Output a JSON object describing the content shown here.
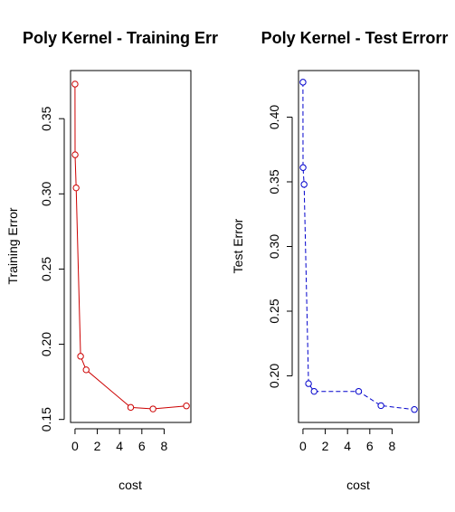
{
  "chart_data": [
    {
      "type": "line",
      "title": "Poly Kernel - Training Err",
      "xlabel": "cost",
      "ylabel": "Training Error",
      "xlim": [
        -0.4,
        10.4
      ],
      "ylim": [
        0.148,
        0.382
      ],
      "x_ticks": [
        0,
        2,
        4,
        6,
        8
      ],
      "y_ticks": [
        0.15,
        0.2,
        0.25,
        0.3,
        0.35
      ],
      "y_tick_labels": [
        "0.15",
        "0.20",
        "0.25",
        "0.30",
        "0.35"
      ],
      "x_tick_labels": [
        "0",
        "2",
        "4",
        "6",
        "8"
      ],
      "grid": false,
      "color": "#cc0000",
      "line_style": "solid",
      "marker": "open-circle",
      "series": [
        {
          "x": [
            0.001,
            0.01,
            0.1,
            0.5,
            1,
            5,
            7,
            10
          ],
          "y": [
            0.373,
            0.326,
            0.304,
            0.192,
            0.183,
            0.158,
            0.157,
            0.159
          ]
        }
      ]
    },
    {
      "type": "line",
      "title": "Poly Kernel - Test Errorr",
      "xlabel": "cost",
      "ylabel": "Test Error",
      "xlim": [
        -0.4,
        10.4
      ],
      "ylim": [
        0.164,
        0.436
      ],
      "x_ticks": [
        0,
        2,
        4,
        6,
        8
      ],
      "y_ticks": [
        0.2,
        0.25,
        0.3,
        0.35,
        0.4
      ],
      "y_tick_labels": [
        "0.20",
        "0.25",
        "0.30",
        "0.35",
        "0.40"
      ],
      "x_tick_labels": [
        "0",
        "2",
        "4",
        "6",
        "8"
      ],
      "grid": false,
      "color": "#0000cc",
      "line_style": "dashed",
      "marker": "open-circle",
      "series": [
        {
          "x": [
            0.001,
            0.01,
            0.1,
            0.5,
            1,
            5,
            7,
            10
          ],
          "y": [
            0.427,
            0.361,
            0.348,
            0.194,
            0.188,
            0.188,
            0.177,
            0.174
          ]
        }
      ]
    }
  ]
}
